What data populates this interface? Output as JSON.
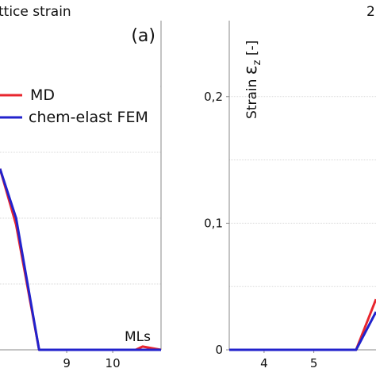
{
  "chart_data": [
    {
      "type": "line",
      "title": "ttice strain",
      "panel_label": "(a)",
      "xlabel": "MLs",
      "xlim": [
        7.55,
        11.05
      ],
      "ylim": [
        0,
        1
      ],
      "x_ticks": [
        9,
        10
      ],
      "grid": true,
      "legend": {
        "position": "top-right",
        "entries": [
          "MD",
          "chem-elast FEM"
        ]
      },
      "series": [
        {
          "name": "MD",
          "color": "#e8262e",
          "x": [
            7.55,
            7.9,
            8.4,
            9.0,
            10.0,
            10.5,
            10.65,
            11.05
          ],
          "y": [
            0.55,
            0.38,
            0.0,
            0.0,
            0.0,
            0.0,
            0.01,
            0.0
          ]
        },
        {
          "name": "chem-elast FEM",
          "color": "#2222cc",
          "x": [
            7.55,
            7.9,
            8.4,
            9.0,
            10.0,
            10.5,
            10.65,
            11.05
          ],
          "y": [
            0.55,
            0.4,
            0.0,
            0.0,
            0.0,
            0.0,
            0.0,
            0.0
          ]
        }
      ]
    },
    {
      "type": "line",
      "title": "2",
      "ylabel_main": "Strain ",
      "ylabel_symbol": "ε",
      "ylabel_sub": "z",
      "ylabel_unit": " [-]",
      "xlim": [
        3.3,
        6.25
      ],
      "ylim": [
        0,
        0.26
      ],
      "x_ticks": [
        4,
        5
      ],
      "y_ticks": [
        0,
        0.1,
        0.2
      ],
      "y_tick_labels": [
        "0",
        "0,1",
        "0,2"
      ],
      "grid": true,
      "series": [
        {
          "name": "",
          "color": "#e8262e",
          "x": [
            3.3,
            4.0,
            5.0,
            5.85,
            6.25
          ],
          "y": [
            0.0,
            0.0,
            0.0,
            0.0,
            0.04
          ]
        },
        {
          "name": "",
          "color": "#2222cc",
          "x": [
            3.3,
            4.0,
            5.0,
            5.85,
            6.25
          ],
          "y": [
            0.0,
            0.0,
            0.0,
            0.0,
            0.03
          ]
        }
      ]
    }
  ]
}
